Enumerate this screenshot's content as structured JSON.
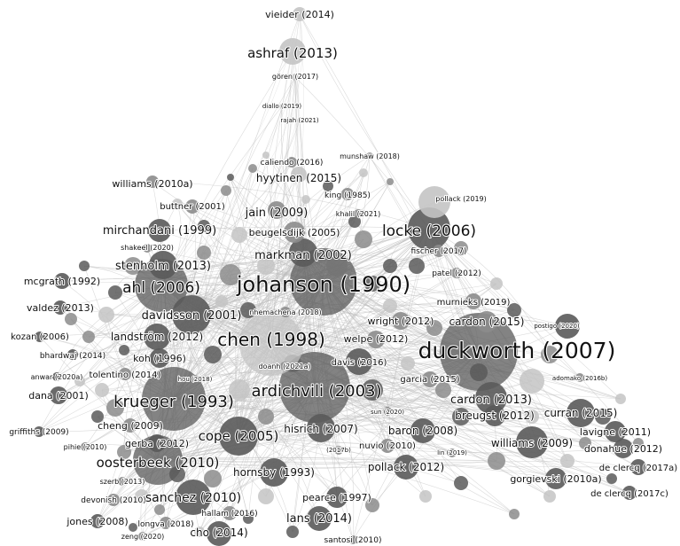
{
  "network": {
    "colors": {
      "background": "#ffffff",
      "edge": "#bdbdbd",
      "node_dark": "#5a5a5a",
      "node_mid": "#8c8c8c",
      "node_light": "#c4c4c4",
      "label": "#111111"
    },
    "labels": {
      "vieider": "vieider (2014)",
      "ashraf": "ashraf (2013)",
      "goren": "gören (2017)",
      "diallo": "diallo (2019)",
      "rajah": "rajah (2021)",
      "caliendo": "caliendo (2016)",
      "munshaw": "munshaw (2018)",
      "williams2010a_top": "williams (2010a)",
      "hyytinen": "hyytinen (2015)",
      "king": "king (1985)",
      "pollack2019": "pollack (2019)",
      "buttner": "buttner (2001)",
      "jain": "jain (2009)",
      "khalil": "khalil (2021)",
      "mirchandani": "mirchandani (1999)",
      "beugelsdijk": "beugelsdijk (2005)",
      "locke": "locke (2006)",
      "shakeel": "shakeel (2020)",
      "fischer": "fischer (2017)",
      "markman": "markman (2002)",
      "stenholm": "stenholm (2013)",
      "patel": "patel (2012)",
      "mcgrath": "mcgrath (1992)",
      "ahl": "ahl (2006)",
      "johanson": "johanson (1990)",
      "valdez": "valdez (2013)",
      "davidsson": "davidsson (2001)",
      "nhemachena": "nhemachena (2018)",
      "murnieks": "murnieks (2019)",
      "cardon2015": "cardon (2015)",
      "wright": "wright (2012)",
      "postigo": "postigo (2020)",
      "kozan": "kozan (2006)",
      "landstrom": "landström (2012)",
      "chen": "chen (1998)",
      "welpe": "welpe (2012)",
      "duckworth": "duckworth (2007)",
      "bhardwaj": "bhardwaj (2014)",
      "koh": "koh (1996)",
      "doanh": "doanh (2021a)",
      "davis": "davis (2016)",
      "adomako": "adomako (2016b)",
      "anwar": "anwar (2020a)",
      "tolentino": "tolentino (2014)",
      "hou": "hou (2018)",
      "garcia": "garcia (2015)",
      "ardichvili": "ardichvili (2003)",
      "dana": "dana (2001)",
      "krueger": "krueger (1993)",
      "cardon2013": "cardon (2013)",
      "sun": "sun (2020)",
      "curran": "curran (2015)",
      "breugst": "breugst (2012)",
      "cheng": "cheng (2009)",
      "lavigne": "lavigne (2011)",
      "hisrich": "hisrich (2007)",
      "baron": "baron (2008)",
      "griffiths": "griffiths (2009)",
      "cope": "cope (2005)",
      "gerba": "gerba (2012)",
      "pihie": "pihie (2010)",
      "nuvio": "nuvio (2010)",
      "williams2009": "williams (2009)",
      "donahue": "donahue (2012)",
      "y2017b": "(2017b)",
      "lin": "lin (2019)",
      "oosterbeek": "oosterbeek (2010)",
      "pollack2012": "pollack (2012)",
      "declercq2017a": "de clercq (2017a)",
      "gorgievski": "gorgievski (2010a)",
      "szerb": "szerb (2013)",
      "hornsby": "hornsby (1993)",
      "declercq2017c": "de clercq (2017c)",
      "devonish": "devonish (2010)",
      "sanchez": "sanchez (2010)",
      "pearce": "pearce (1997)",
      "jones": "jones (2008)",
      "longva": "longva (2018)",
      "hallam": "hallam (2016)",
      "lans": "lans (2014)",
      "zeng": "zeng (2020)",
      "cho": "cho (2014)",
      "santosi": "santosi (2010)"
    }
  }
}
